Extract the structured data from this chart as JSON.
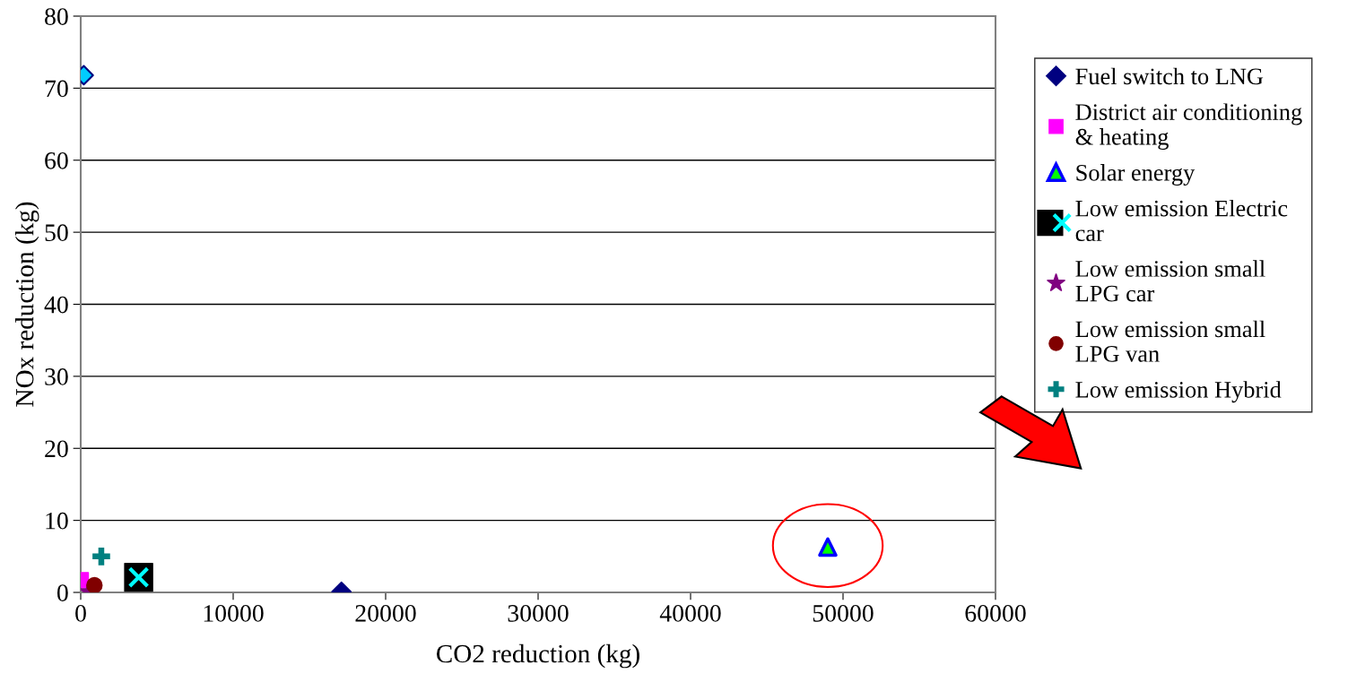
{
  "chart_data": {
    "type": "scatter",
    "xlabel": "CO2 reduction (kg)",
    "ylabel": "NOx reduction (kg)",
    "xlim": [
      0,
      60000
    ],
    "xticks": [
      0,
      10000,
      20000,
      30000,
      40000,
      50000,
      60000
    ],
    "ylim": [
      0,
      80
    ],
    "yticks": [
      0,
      10,
      20,
      30,
      40,
      50,
      60,
      70,
      80
    ],
    "grid": "y",
    "legend": "right",
    "series": [
      {
        "name": "Fuel switch to LNG",
        "color": "#000080",
        "colors": [
          "#00ccff",
          "#000080"
        ],
        "marker": "diamond",
        "x": [
          200,
          17100
        ],
        "values": [
          71.8,
          0.1
        ]
      },
      {
        "name": "District air conditioning\n& heating",
        "color": "#ff00ff",
        "marker": "square",
        "x": [
          0
        ],
        "values": [
          1.7
        ]
      },
      {
        "name": "Solar energy",
        "color": "#00ff00",
        "marker": "triangle",
        "x": [
          49000
        ],
        "values": [
          6.3
        ]
      },
      {
        "name": "Low emission Electric\ncar",
        "color": "#00ffff",
        "marker": "cross",
        "x": [
          3800
        ],
        "values": [
          2.1
        ]
      },
      {
        "name": "Low emission small\nLPG car",
        "color": "#800080",
        "marker": "star",
        "x": [
          500
        ],
        "values": [
          0.1
        ]
      },
      {
        "name": "Low emission small\nLPG van",
        "color": "#800000",
        "marker": "circle",
        "x": [
          900
        ],
        "values": [
          1.0
        ]
      },
      {
        "name": "Low emission Hybrid",
        "color": "#008080",
        "x": [
          1350
        ],
        "values": [
          5.0
        ]
      }
    ]
  }
}
